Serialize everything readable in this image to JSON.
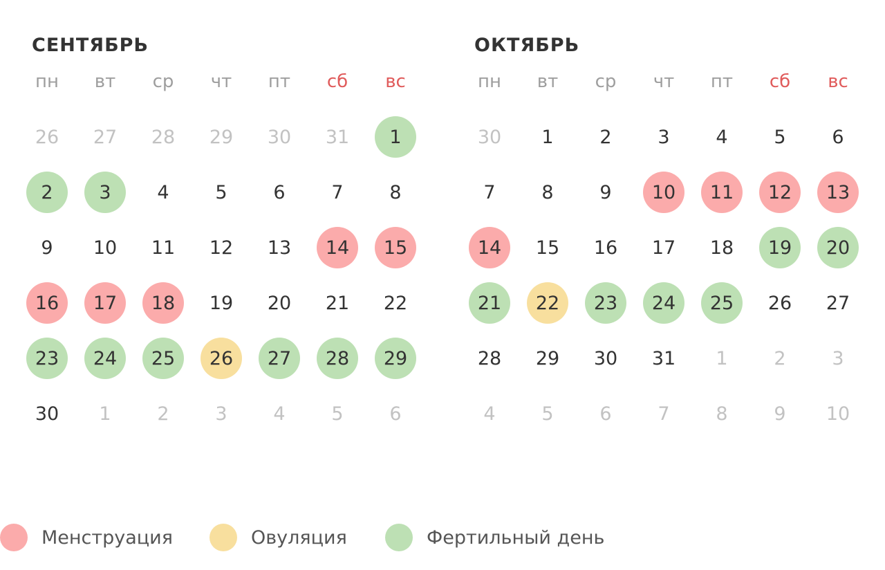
{
  "colors": {
    "menstruation": "#fbabab",
    "ovulation": "#f8df9e",
    "fertile": "#bde0b4",
    "weekend_label": "#e05b5b",
    "other_month_text": "#c2c2c2",
    "day_text": "#333333"
  },
  "weekdays": [
    {
      "label": "пн",
      "weekend": false
    },
    {
      "label": "вт",
      "weekend": false
    },
    {
      "label": "ср",
      "weekend": false
    },
    {
      "label": "чт",
      "weekend": false
    },
    {
      "label": "пт",
      "weekend": false
    },
    {
      "label": "сб",
      "weekend": true
    },
    {
      "label": "вс",
      "weekend": true
    }
  ],
  "months": [
    {
      "title": "СЕНТЯБРЬ",
      "days": [
        {
          "label": "26",
          "other": true
        },
        {
          "label": "27",
          "other": true
        },
        {
          "label": "28",
          "other": true
        },
        {
          "label": "29",
          "other": true
        },
        {
          "label": "30",
          "other": true
        },
        {
          "label": "31",
          "other": true
        },
        {
          "label": "1",
          "type": "fertile"
        },
        {
          "label": "2",
          "type": "fertile"
        },
        {
          "label": "3",
          "type": "fertile"
        },
        {
          "label": "4"
        },
        {
          "label": "5"
        },
        {
          "label": "6"
        },
        {
          "label": "7"
        },
        {
          "label": "8"
        },
        {
          "label": "9"
        },
        {
          "label": "10"
        },
        {
          "label": "11"
        },
        {
          "label": "12"
        },
        {
          "label": "13"
        },
        {
          "label": "14",
          "type": "menstruation"
        },
        {
          "label": "15",
          "type": "menstruation"
        },
        {
          "label": "16",
          "type": "menstruation"
        },
        {
          "label": "17",
          "type": "menstruation"
        },
        {
          "label": "18",
          "type": "menstruation"
        },
        {
          "label": "19"
        },
        {
          "label": "20"
        },
        {
          "label": "21"
        },
        {
          "label": "22"
        },
        {
          "label": "23",
          "type": "fertile"
        },
        {
          "label": "24",
          "type": "fertile"
        },
        {
          "label": "25",
          "type": "fertile"
        },
        {
          "label": "26",
          "type": "ovulation"
        },
        {
          "label": "27",
          "type": "fertile"
        },
        {
          "label": "28",
          "type": "fertile"
        },
        {
          "label": "29",
          "type": "fertile"
        },
        {
          "label": "30"
        },
        {
          "label": "1",
          "other": true
        },
        {
          "label": "2",
          "other": true
        },
        {
          "label": "3",
          "other": true
        },
        {
          "label": "4",
          "other": true
        },
        {
          "label": "5",
          "other": true
        },
        {
          "label": "6",
          "other": true
        }
      ]
    },
    {
      "title": "ОКТЯБРЬ",
      "days": [
        {
          "label": "30",
          "other": true
        },
        {
          "label": "1"
        },
        {
          "label": "2"
        },
        {
          "label": "3"
        },
        {
          "label": "4"
        },
        {
          "label": "5"
        },
        {
          "label": "6"
        },
        {
          "label": "7"
        },
        {
          "label": "8"
        },
        {
          "label": "9"
        },
        {
          "label": "10",
          "type": "menstruation"
        },
        {
          "label": "11",
          "type": "menstruation"
        },
        {
          "label": "12",
          "type": "menstruation"
        },
        {
          "label": "13",
          "type": "menstruation"
        },
        {
          "label": "14",
          "type": "menstruation"
        },
        {
          "label": "15"
        },
        {
          "label": "16"
        },
        {
          "label": "17"
        },
        {
          "label": "18"
        },
        {
          "label": "19",
          "type": "fertile"
        },
        {
          "label": "20",
          "type": "fertile"
        },
        {
          "label": "21",
          "type": "fertile"
        },
        {
          "label": "22",
          "type": "ovulation"
        },
        {
          "label": "23",
          "type": "fertile"
        },
        {
          "label": "24",
          "type": "fertile"
        },
        {
          "label": "25",
          "type": "fertile"
        },
        {
          "label": "26"
        },
        {
          "label": "27"
        },
        {
          "label": "28"
        },
        {
          "label": "29"
        },
        {
          "label": "30"
        },
        {
          "label": "31"
        },
        {
          "label": "1",
          "other": true
        },
        {
          "label": "2",
          "other": true
        },
        {
          "label": "3",
          "other": true
        },
        {
          "label": "4",
          "other": true
        },
        {
          "label": "5",
          "other": true
        },
        {
          "label": "6",
          "other": true
        },
        {
          "label": "7",
          "other": true
        },
        {
          "label": "8",
          "other": true
        },
        {
          "label": "9",
          "other": true
        },
        {
          "label": "10",
          "other": true
        }
      ]
    }
  ],
  "legend": {
    "menstruation": "Менструация",
    "ovulation": "Овуляция",
    "fertile": "Фертильный день"
  }
}
